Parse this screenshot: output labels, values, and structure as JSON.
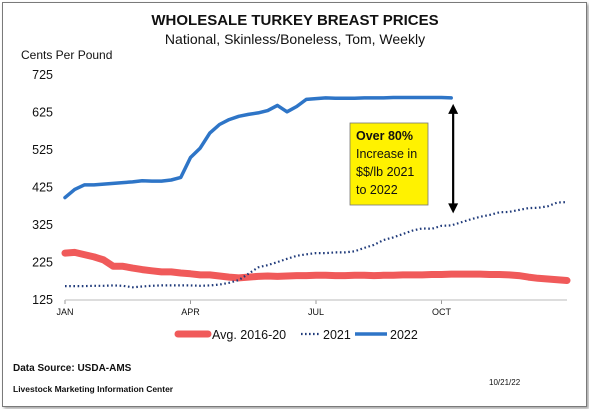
{
  "chart_data": {
    "type": "line",
    "title": "WHOLESALE TURKEY BREAST PRICES",
    "subtitle": "National, Skinless/Boneless, Tom, Weekly",
    "ylabel": "Cents Per Pound",
    "ylim": [
      125,
      725
    ],
    "yticks": [
      125,
      225,
      325,
      425,
      525,
      625,
      725
    ],
    "xlim": [
      1,
      53
    ],
    "xticks": [
      {
        "label": "JAN",
        "week": 1
      },
      {
        "label": "APR",
        "week": 14
      },
      {
        "label": "JUL",
        "week": 27
      },
      {
        "label": "OCT",
        "week": 40
      }
    ],
    "grid": false,
    "legend_position": "bottom",
    "series": [
      {
        "name": "Avg. 2016-20",
        "color": "#f05a5a",
        "style": "thick",
        "values": [
          250,
          252,
          246,
          240,
          232,
          215,
          215,
          210,
          206,
          203,
          200,
          200,
          197,
          195,
          192,
          192,
          189,
          186,
          184,
          186,
          188,
          189,
          188,
          189,
          190,
          190,
          191,
          191,
          190,
          190,
          191,
          191,
          190,
          191,
          191,
          192,
          192,
          192,
          193,
          193,
          194,
          194,
          194,
          194,
          193,
          193,
          192,
          190,
          186,
          183,
          181,
          179,
          177
        ]
      },
      {
        "name": "2021",
        "color": "#1f3a7a",
        "style": "dotted",
        "values": [
          162,
          162,
          162,
          163,
          163,
          164,
          163,
          159,
          161,
          163,
          164,
          164,
          164,
          164,
          163,
          164,
          166,
          171,
          178,
          195,
          212,
          218,
          226,
          235,
          243,
          247,
          250,
          250,
          252,
          252,
          255,
          264,
          272,
          285,
          292,
          301,
          310,
          316,
          315,
          323,
          324,
          332,
          340,
          347,
          352,
          359,
          360,
          365,
          370,
          371,
          375,
          385,
          386
        ]
      },
      {
        "name": "2022",
        "color": "#2e75c7",
        "style": "solid",
        "values": [
          398,
          420,
          432,
          432,
          434,
          436,
          438,
          440,
          443,
          442,
          442,
          445,
          452,
          505,
          530,
          570,
          593,
          606,
          615,
          620,
          624,
          630,
          644,
          627,
          641,
          660,
          662,
          664,
          663,
          663,
          663,
          664,
          664,
          664,
          665,
          665,
          665,
          665,
          665,
          665,
          664
        ]
      }
    ],
    "annotation": {
      "line1": "Over 80%",
      "line2": "Increase in",
      "line3": "$$/lb 2021",
      "line4": "to 2022",
      "arrow_from": 664,
      "arrow_to": 340,
      "arrow_week": 41,
      "background": "#fff200"
    }
  },
  "footer": {
    "source": "Data Source:  USDA-AMS",
    "org": "Livestock Marketing Information Center",
    "date": "10/21/22"
  }
}
